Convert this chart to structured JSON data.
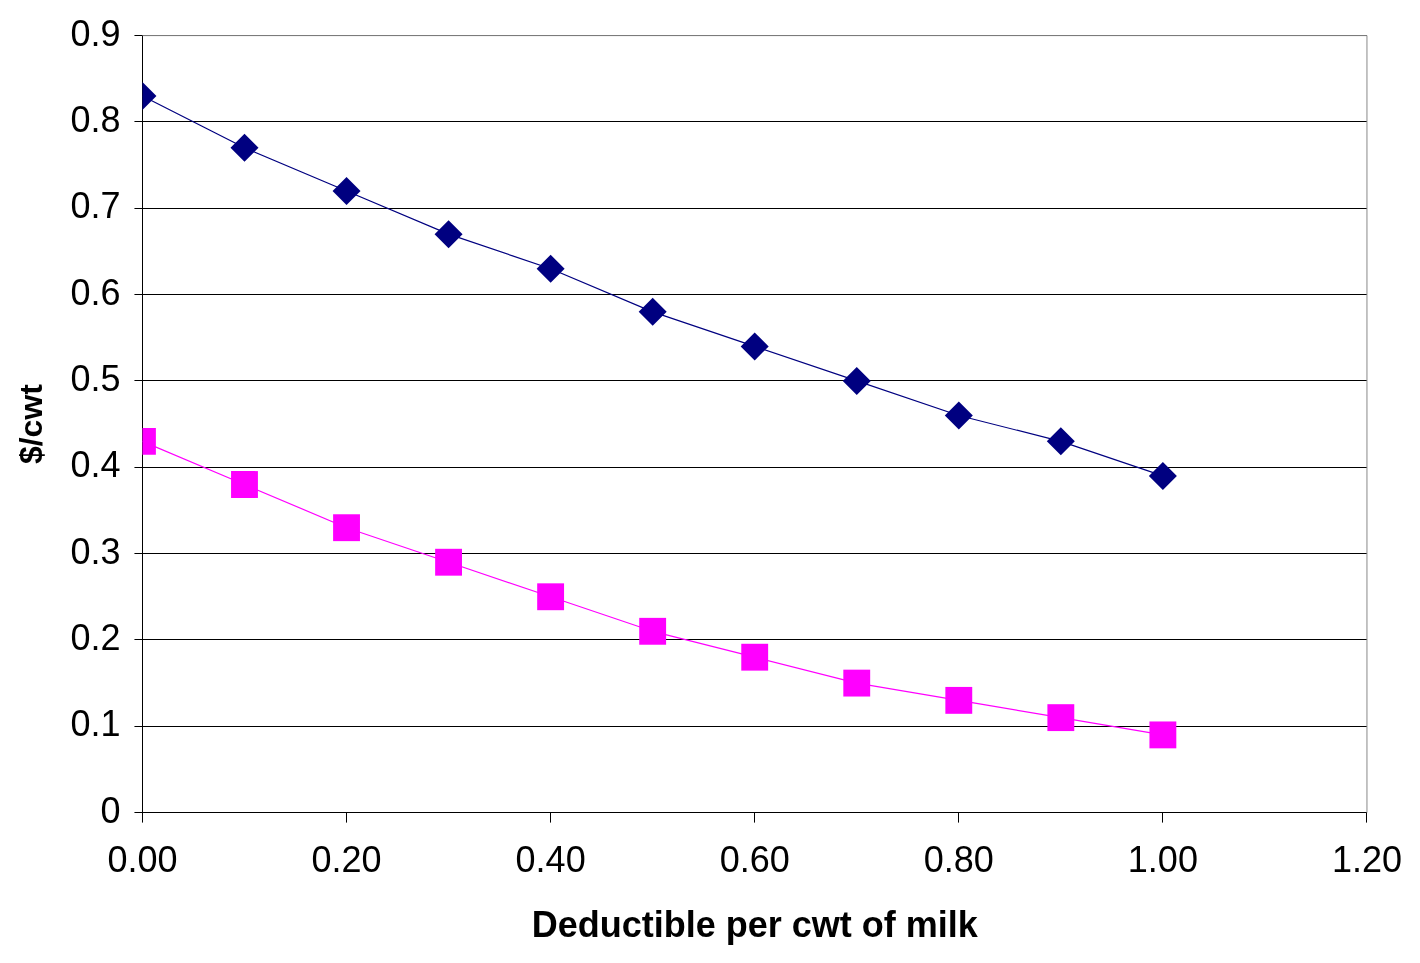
{
  "chart_data": {
    "type": "line",
    "xlabel": "Deductible per cwt of milk",
    "ylabel": "$/cwt",
    "x": [
      0,
      0.1,
      0.2,
      0.3,
      0.4,
      0.5,
      0.6,
      0.7,
      0.8,
      0.9,
      1.0
    ],
    "series": [
      {
        "color": "#000080",
        "marker": "diamond",
        "values": [
          0.83,
          0.77,
          0.72,
          0.67,
          0.63,
          0.58,
          0.54,
          0.5,
          0.46,
          0.43,
          0.39
        ]
      },
      {
        "color": "#ff00ff",
        "marker": "square",
        "values": [
          0.43,
          0.38,
          0.33,
          0.29,
          0.25,
          0.21,
          0.18,
          0.15,
          0.13,
          0.11,
          0.09
        ]
      }
    ],
    "xlim": [
      0,
      1.2
    ],
    "xticks": [
      {
        "value": 0,
        "label": "0.00"
      },
      {
        "value": 0.2,
        "label": "0.20"
      },
      {
        "value": 0.4,
        "label": "0.40"
      },
      {
        "value": 0.6,
        "label": "0.60"
      },
      {
        "value": 0.8,
        "label": "0.80"
      },
      {
        "value": 1.0,
        "label": "1.00"
      },
      {
        "value": 1.2,
        "label": "1.20"
      }
    ],
    "ylim": [
      0,
      0.9
    ],
    "yticks": [
      0,
      0.1,
      0.2,
      0.3,
      0.4,
      0.5,
      0.6,
      0.7,
      0.8,
      0.9
    ],
    "grid": "y",
    "legend": false,
    "line_style": "solid"
  }
}
